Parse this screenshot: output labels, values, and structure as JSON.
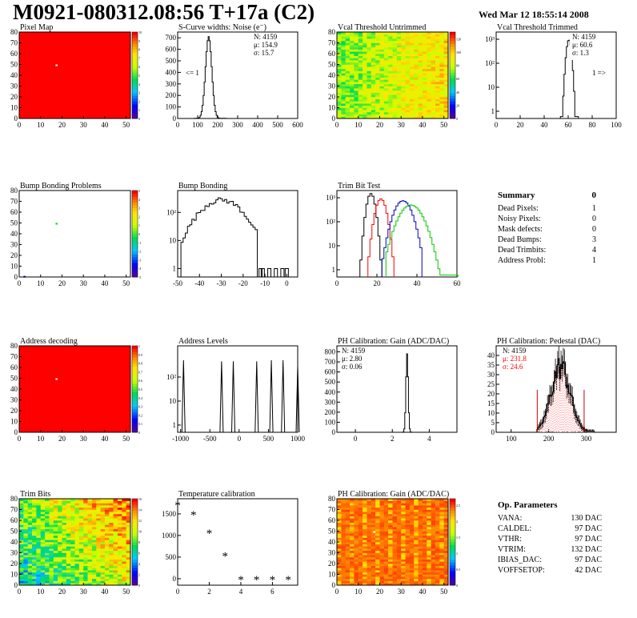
{
  "title": "M0921-080312.08:56 T+17a (C2)",
  "timestamp": "Wed Mar 12 18:55:14 2008",
  "summary": {
    "header": "Summary",
    "total": "0",
    "rows": [
      {
        "label": "Dead Pixels:",
        "value": "1"
      },
      {
        "label": "Noisy Pixels:",
        "value": "0"
      },
      {
        "label": "Mask defects:",
        "value": "0"
      },
      {
        "label": "Dead Bumps:",
        "value": "3"
      },
      {
        "label": "Dead Trimbits:",
        "value": "4"
      },
      {
        "label": "Address Probl:",
        "value": "1"
      }
    ]
  },
  "op_params": {
    "header": "Op. Parameters",
    "rows": [
      {
        "label": "VANA:",
        "value": "130 DAC"
      },
      {
        "label": "CALDEL:",
        "value": "97 DAC"
      },
      {
        "label": "VTHR:",
        "value": "97 DAC"
      },
      {
        "label": "VTRIM:",
        "value": "132 DAC"
      },
      {
        "label": "IBIAS_DAC:",
        "value": "97 DAC"
      },
      {
        "label": "VOFFSETOP:",
        "value": "42 DAC"
      }
    ]
  },
  "colors": {
    "red": "#ff0000",
    "green": "#00cc00",
    "blue": "#0000cc",
    "pink": "#ffb0b0"
  },
  "chart_data": [
    {
      "id": "pixel-map",
      "type": "heatmap",
      "title": "Pixel Map",
      "xlim": [
        0,
        52
      ],
      "ylim": [
        0,
        80
      ],
      "xticks": [
        0,
        10,
        20,
        30,
        40,
        50
      ],
      "yticks": [
        0,
        10,
        20,
        30,
        40,
        50,
        60,
        70,
        80
      ],
      "pattern": "uniform",
      "fill": "#ff0000",
      "spots": [
        {
          "x": 17,
          "y": 49,
          "color": "#ffffff"
        }
      ],
      "colorbar": {
        "min": 0,
        "max": 10,
        "ticks": [
          0,
          1,
          2,
          3,
          4,
          5,
          6,
          7,
          8,
          9,
          10
        ]
      }
    },
    {
      "id": "scurve-noise",
      "type": "bar",
      "title": "S-Curve widths: Noise (e⁻)",
      "xlim": [
        0,
        600
      ],
      "ylim": [
        0,
        750
      ],
      "xticks": [
        0,
        100,
        200,
        300,
        400,
        500,
        600
      ],
      "yticks": [
        0,
        100,
        200,
        300,
        400,
        500,
        600,
        700
      ],
      "stats": [
        "N: 4159",
        "μ: 154.9",
        "σ: 15.7"
      ],
      "annotation": "<= 1",
      "curves": [
        {
          "mode": "gauss",
          "mean": 155,
          "sigma": 15.7,
          "peak": 710,
          "from": 85,
          "to": 240,
          "step": 5,
          "tail": true
        }
      ]
    },
    {
      "id": "vcal-untrimmed",
      "type": "heatmap",
      "title": "Vcal Threshold Untrimmed",
      "xlim": [
        0,
        52
      ],
      "ylim": [
        0,
        80
      ],
      "xticks": [
        0,
        10,
        20,
        30,
        40,
        50
      ],
      "yticks": [
        0,
        10,
        20,
        30,
        40,
        50,
        60,
        70,
        80
      ],
      "pattern": "noise-gradient",
      "colorbar": {
        "min": 0,
        "max": 130,
        "ticks": [
          0,
          20,
          40,
          60,
          80,
          100,
          120
        ]
      }
    },
    {
      "id": "vcal-trimmed",
      "type": "bar",
      "title": "Vcal Threshold Trimmed",
      "xlim": [
        0,
        100
      ],
      "log": true,
      "ylim": [
        0.5,
        2000
      ],
      "xticks": [
        0,
        20,
        40,
        60,
        80,
        100
      ],
      "yticks": [
        1,
        10,
        100,
        1000
      ],
      "stats": [
        "N: 4159",
        "μ: 60.6",
        "σ:  1.3"
      ],
      "annotation": "1 =>",
      "curves": [
        {
          "mode": "gauss",
          "mean": 60.6,
          "sigma": 1.4,
          "peak": 950,
          "from": 54,
          "to": 68,
          "step": 1
        }
      ]
    },
    {
      "id": "bump-problems",
      "type": "heatmap",
      "title": "Bump Bonding Problems",
      "xlim": [
        0,
        52
      ],
      "ylim": [
        0,
        80
      ],
      "xticks": [
        0,
        10,
        20,
        30,
        40,
        50
      ],
      "yticks": [
        0,
        10,
        20,
        30,
        40,
        50,
        60,
        70,
        80
      ],
      "pattern": "empty",
      "spots": [
        {
          "x": 17,
          "y": 49,
          "color": "#00dd00"
        },
        {
          "x": 2,
          "y": 0,
          "color": "#0000ff"
        }
      ],
      "colorbar": {
        "min": -5,
        "max": 5,
        "ticks": [
          -5,
          -4,
          -3,
          -2,
          -1,
          0,
          1,
          2,
          3,
          4,
          5
        ]
      }
    },
    {
      "id": "bump-bonding",
      "type": "bar",
      "title": "Bump Bonding",
      "xlim": [
        -50,
        5
      ],
      "log": true,
      "ylim": [
        0.5,
        600
      ],
      "xticks": [
        -50,
        -40,
        -30,
        -20,
        -10,
        0
      ],
      "yticks": [
        1,
        10,
        100
      ],
      "curves": [
        {
          "mode": "gauss",
          "mean": -30,
          "sigma": 7,
          "peak": 280,
          "from": -48,
          "to": -14,
          "step": 1,
          "jitter": true
        },
        {
          "mode": "points",
          "x": [
            -12,
            -11,
            -8,
            -5,
            -2,
            0
          ],
          "y": [
            1,
            1,
            1,
            1,
            1,
            1
          ]
        }
      ]
    },
    {
      "id": "trim-bit-test",
      "type": "bar",
      "title": "Trim Bit Test",
      "xlim": [
        0,
        60
      ],
      "log": true,
      "ylim": [
        0.5,
        2000
      ],
      "xticks": [
        0,
        20,
        40,
        60
      ],
      "yticks": [
        1,
        10,
        100,
        1000
      ],
      "curves": [
        {
          "mode": "gauss",
          "mean": 17,
          "sigma": 1.4,
          "peak": 1500,
          "from": 12,
          "to": 22,
          "step": 1,
          "color": "#000000"
        },
        {
          "mode": "gauss",
          "mean": 22,
          "sigma": 1.8,
          "peak": 900,
          "from": 16,
          "to": 28,
          "step": 1,
          "color": "#ff0000"
        },
        {
          "mode": "gauss",
          "mean": 33,
          "sigma": 3,
          "peak": 750,
          "from": 23,
          "to": 42,
          "step": 1,
          "color": "#0000cc"
        },
        {
          "mode": "gauss",
          "mean": 37,
          "sigma": 4,
          "peak": 500,
          "from": 25,
          "to": 60,
          "step": 1,
          "color": "#00cc00"
        }
      ]
    },
    {
      "id": "address-decoding",
      "type": "heatmap",
      "title": "Address decoding",
      "xlim": [
        0,
        52
      ],
      "ylim": [
        0,
        80
      ],
      "xticks": [
        0,
        10,
        20,
        30,
        40,
        50
      ],
      "yticks": [
        0,
        10,
        20,
        30,
        40,
        50,
        60,
        70,
        80
      ],
      "pattern": "uniform",
      "fill": "#ff0000",
      "spots": [
        {
          "x": 17,
          "y": 49,
          "color": "#ffffff"
        }
      ],
      "colorbar": {
        "min": 0,
        "max": 1,
        "ticks": [
          0,
          0.1,
          0.2,
          0.3,
          0.4,
          0.5,
          0.6,
          0.7,
          0.8,
          0.9,
          1
        ]
      }
    },
    {
      "id": "address-levels",
      "type": "bar",
      "title": "Address Levels",
      "xlim": [
        -1050,
        1000
      ],
      "log": true,
      "ylim": [
        0.5,
        2000
      ],
      "xticks": [
        -1000,
        -500,
        0,
        500,
        1000
      ],
      "yticks": [
        1,
        10,
        100
      ],
      "curves": [
        {
          "mode": "spikes",
          "x": [
            -950,
            -300,
            -100,
            300,
            550,
            750,
            1000
          ],
          "y": [
            500,
            450,
            450,
            450,
            500,
            500,
            300
          ]
        }
      ]
    },
    {
      "id": "ph-gain",
      "type": "bar",
      "title": "PH Calibration: Gain (ADC/DAC)",
      "xlim": [
        -1,
        5.5
      ],
      "ylim": [
        0,
        860
      ],
      "xticks": [
        0,
        2,
        4
      ],
      "yticks": [
        0,
        100,
        200,
        300,
        400,
        500,
        600,
        700,
        800
      ],
      "stats": [
        "N: 4159",
        "μ: 2.80",
        "σ: 0.06"
      ],
      "curves": [
        {
          "mode": "gauss",
          "mean": 2.8,
          "sigma": 0.06,
          "peak": 780,
          "from": 2.55,
          "to": 3.05,
          "step": 0.05
        }
      ]
    },
    {
      "id": "ph-pedestal",
      "type": "bar",
      "title": "PH Calibration: Pedestal (DAC)",
      "xlim": [
        60,
        380
      ],
      "ylim": [
        0,
        45
      ],
      "xticks": [
        100,
        200,
        300
      ],
      "yticks": [
        0,
        5,
        10,
        15,
        20,
        25,
        30,
        35,
        40
      ],
      "stats": [
        "N: 4159",
        "μ: 231.8",
        "σ: 24.6"
      ],
      "stat_colors": [
        "#000000",
        "#ff0000",
        "#ff0000"
      ],
      "curves": [
        {
          "mode": "gauss",
          "mean": 232,
          "sigma": 25,
          "peak": 34,
          "from": 170,
          "to": 320,
          "step": 3,
          "jitter": true,
          "errorbars": true,
          "fit": true
        }
      ]
    },
    {
      "id": "trim-bits",
      "type": "heatmap",
      "title": "Trim Bits",
      "xlim": [
        0,
        52
      ],
      "ylim": [
        0,
        80
      ],
      "xticks": [
        0,
        10,
        20,
        30,
        40,
        50
      ],
      "yticks": [
        0,
        10,
        20,
        30,
        40,
        50,
        60,
        70,
        80
      ],
      "pattern": "trim",
      "colorbar": {
        "min": 0,
        "max": 16,
        "ticks": [
          0,
          2,
          4,
          6,
          8,
          10,
          12,
          14,
          16
        ]
      }
    },
    {
      "id": "temp-calibration",
      "type": "scatter",
      "title": "Temperature calibration",
      "xlim": [
        0,
        7.6
      ],
      "ylim": [
        -150,
        1850
      ],
      "xticks": [
        0,
        2,
        4,
        6
      ],
      "yticks": [
        0,
        500,
        1000,
        1500
      ],
      "points": {
        "x": [
          0,
          1,
          2,
          3,
          4,
          5,
          6,
          7
        ],
        "y": [
          1700,
          1480,
          1050,
          530,
          -20,
          -20,
          -20,
          -20
        ]
      }
    },
    {
      "id": "ph-gain-map",
      "type": "heatmap",
      "title": "PH Calibration: Gain (ADC/DAC)",
      "xlim": [
        0,
        52
      ],
      "ylim": [
        0,
        80
      ],
      "xticks": [
        0,
        10,
        20,
        30,
        40,
        50
      ],
      "yticks": [
        0,
        10,
        20,
        30,
        40,
        50,
        60,
        70,
        80
      ],
      "pattern": "gainmap",
      "spots": [
        {
          "x": 17,
          "y": 49,
          "color": "#ffffff"
        }
      ],
      "colorbar": {
        "min": 0,
        "max": 2.7,
        "ticks": [
          0,
          0.5,
          1,
          1.5,
          2,
          2.5
        ]
      }
    }
  ]
}
